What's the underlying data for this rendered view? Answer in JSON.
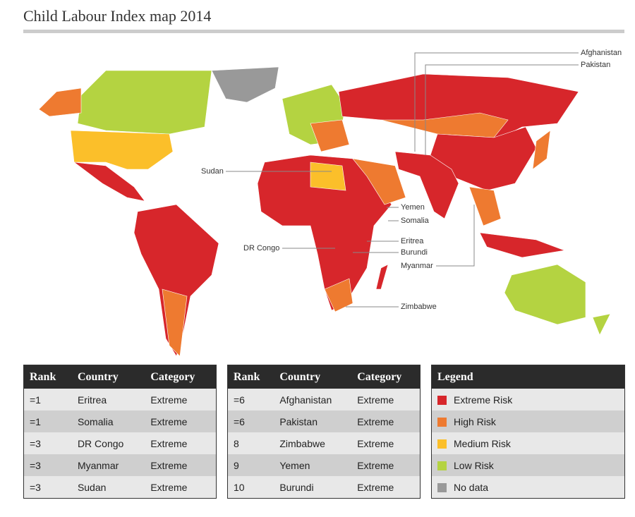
{
  "title": "Child Labour Index map 2014",
  "map": {
    "labels": [
      "Afghanistan",
      "Pakistan",
      "Sudan",
      "Yemen",
      "Somalia",
      "DR Congo",
      "Eritrea",
      "Burundi",
      "Myanmar",
      "Zimbabwe"
    ]
  },
  "tables": [
    {
      "header": [
        "Rank",
        "Country",
        "Category"
      ],
      "rows": [
        [
          "=1",
          "Eritrea",
          "Extreme"
        ],
        [
          "=1",
          "Somalia",
          "Extreme"
        ],
        [
          "=3",
          "DR Congo",
          "Extreme"
        ],
        [
          "=3",
          "Myanmar",
          "Extreme"
        ],
        [
          "=3",
          "Sudan",
          "Extreme"
        ]
      ]
    },
    {
      "header": [
        "Rank",
        "Country",
        "Category"
      ],
      "rows": [
        [
          "=6",
          "Afghanistan",
          "Extreme"
        ],
        [
          "=6",
          "Pakistan",
          "Extreme"
        ],
        [
          "8",
          "Zimbabwe",
          "Extreme"
        ],
        [
          "9",
          "Yemen",
          "Extreme"
        ],
        [
          "10",
          "Burundi",
          "Extreme"
        ]
      ]
    }
  ],
  "legend": {
    "title": "Legend",
    "items": [
      {
        "label": "Extreme Risk",
        "color": "#d7262b"
      },
      {
        "label": "High Risk",
        "color": "#ee7a30"
      },
      {
        "label": "Medium Risk",
        "color": "#fbbf2a"
      },
      {
        "label": "Low Risk",
        "color": "#b4d341"
      },
      {
        "label": "No data",
        "color": "#999999"
      }
    ]
  }
}
